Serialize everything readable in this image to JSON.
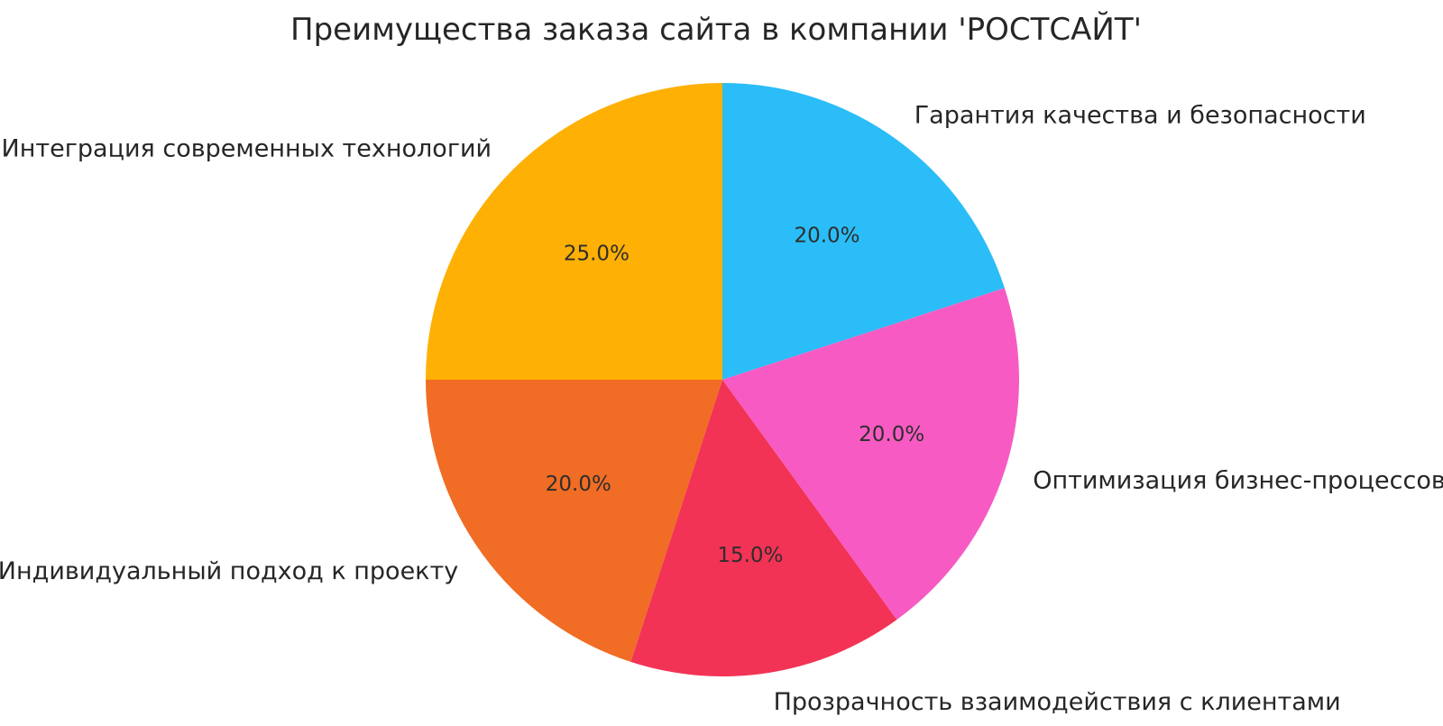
{
  "page": {
    "background_color": "#ffffff",
    "text_color": "#262626"
  },
  "chart_data": {
    "type": "pie",
    "title": "Преимущества заказа сайта в компании 'РОСТСАЙТ'",
    "legend": "none",
    "start_angle_deg": 90,
    "direction": "clockwise",
    "label_distance": 1.1,
    "pct_distance": 0.6,
    "slices": [
      {
        "label": "Гарантия качества и безопасности",
        "value": 20.0,
        "pct_label": "20.0%",
        "color": "#2ABDF7"
      },
      {
        "label": "Оптимизация бизнес-процессов",
        "value": 20.0,
        "pct_label": "20.0%",
        "color": "#F75BC3"
      },
      {
        "label": "Прозрачность взаимодействия с клиентами",
        "value": 15.0,
        "pct_label": "15.0%",
        "color": "#F23355"
      },
      {
        "label": "Индивидуальный подход к проекту",
        "value": 20.0,
        "pct_label": "20.0%",
        "color": "#F16C24"
      },
      {
        "label": "Интеграция современных технологий",
        "value": 25.0,
        "pct_label": "25.0%",
        "color": "#FEB005"
      }
    ]
  }
}
